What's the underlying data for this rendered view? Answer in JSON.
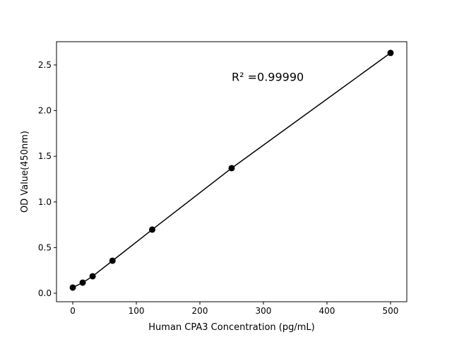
{
  "chart_data": {
    "type": "line",
    "title": "",
    "xlabel": "Human CPA3 Concentration (pg/mL)",
    "ylabel": "OD Value(450nm)",
    "annotation": "R² =0.99990",
    "annotation_at": [
      250,
      2.37
    ],
    "xlim": [
      -25.6,
      525.6
    ],
    "ylim": [
      -0.093,
      2.755
    ],
    "xticks": [
      0,
      100,
      200,
      300,
      400,
      500
    ],
    "yticks": [
      0.0,
      0.5,
      1.0,
      1.5,
      2.0,
      2.5
    ],
    "xtick_labels": [
      "0",
      "100",
      "200",
      "300",
      "400",
      "500"
    ],
    "ytick_labels": [
      "0.0",
      "0.5",
      "1.0",
      "1.5",
      "2.0",
      "2.5"
    ],
    "grid": false,
    "series": [
      {
        "x": [
          0,
          15.625,
          31.25,
          62.5,
          125,
          250,
          500
        ],
        "y": [
          0.062,
          0.116,
          0.186,
          0.356,
          0.697,
          1.37,
          2.632
        ],
        "color": "#000000",
        "marker": "circle"
      }
    ]
  }
}
